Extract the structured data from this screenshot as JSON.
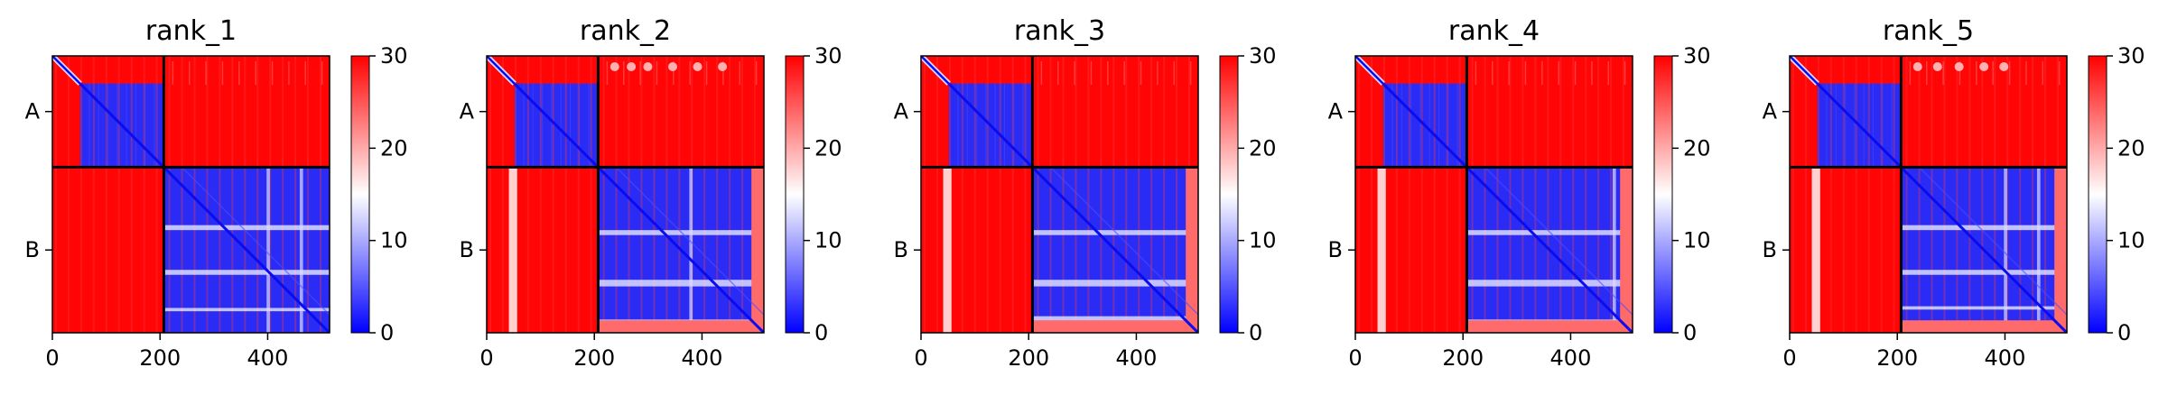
{
  "chart_data": {
    "type": "heatmap",
    "panel_count": 5,
    "x_ticks": [
      0,
      200,
      400
    ],
    "x_tick_labels": [
      "0",
      "200",
      "400"
    ],
    "xlim": [
      0,
      515
    ],
    "chain_boundary": 207,
    "chain_labels": [
      "A",
      "B"
    ],
    "colorbar": {
      "ticks": [
        0,
        10,
        20,
        30
      ],
      "tick_labels": [
        "0",
        "10",
        "20",
        "30"
      ],
      "range": [
        0,
        30
      ],
      "colors": {
        "low": "#0000ff",
        "mid": "#ffffff",
        "high": "#ff0000"
      }
    },
    "panels": [
      {
        "title": "rank_1",
        "diag_tail": "blue",
        "bottom_band": false,
        "right_band": false,
        "left_stripes": [],
        "top_notches": [],
        "hbands": [
          {
            "y0": 0.35,
            "y1": 0.38
          },
          {
            "y0": 0.62,
            "y1": 0.65
          },
          {
            "y0": 0.85,
            "y1": 0.87
          }
        ],
        "vbands": [
          {
            "x0": 0.62,
            "x1": 0.64
          },
          {
            "x0": 0.82,
            "x1": 0.84
          }
        ]
      },
      {
        "title": "rank_2",
        "diag_tail": "blue",
        "bottom_band": true,
        "right_band": true,
        "left_stripes": [
          {
            "x": 0.08,
            "w": 0.03
          }
        ],
        "top_notches": [
          0.1,
          0.2,
          0.3,
          0.45,
          0.6,
          0.75
        ],
        "hbands": [
          {
            "y0": 0.38,
            "y1": 0.41
          },
          {
            "y0": 0.68,
            "y1": 0.72
          },
          {
            "y0": 0.92,
            "y1": 0.96
          }
        ],
        "vbands": [
          {
            "x0": 0.55,
            "x1": 0.57
          },
          {
            "x0": 0.95,
            "x1": 0.97
          }
        ]
      },
      {
        "title": "rank_3",
        "diag_tail": "blue",
        "bottom_band": true,
        "right_band": true,
        "left_stripes": [
          {
            "x": 0.08,
            "w": 0.03
          }
        ],
        "top_notches": [],
        "hbands": [
          {
            "y0": 0.38,
            "y1": 0.41
          },
          {
            "y0": 0.68,
            "y1": 0.72
          },
          {
            "y0": 0.9,
            "y1": 0.95
          }
        ],
        "vbands": [
          {
            "x0": 0.96,
            "x1": 0.99
          }
        ]
      },
      {
        "title": "rank_4",
        "diag_tail": "blue",
        "bottom_band": true,
        "right_band": true,
        "left_stripes": [
          {
            "x": 0.08,
            "w": 0.03
          }
        ],
        "top_notches": [],
        "hbands": [
          {
            "y0": 0.38,
            "y1": 0.41
          },
          {
            "y0": 0.68,
            "y1": 0.72
          },
          {
            "y0": 0.92,
            "y1": 0.96
          }
        ],
        "vbands": [
          {
            "x0": 0.88,
            "x1": 0.9
          }
        ]
      },
      {
        "title": "rank_5",
        "diag_tail": "blue",
        "bottom_band": true,
        "right_band": true,
        "left_stripes": [
          {
            "x": 0.08,
            "w": 0.03
          }
        ],
        "top_notches": [
          0.1,
          0.22,
          0.35,
          0.5,
          0.62
        ],
        "hbands": [
          {
            "y0": 0.35,
            "y1": 0.38
          },
          {
            "y0": 0.62,
            "y1": 0.65
          },
          {
            "y0": 0.84,
            "y1": 0.86
          }
        ],
        "vbands": [
          {
            "x0": 0.62,
            "x1": 0.64
          },
          {
            "x0": 0.82,
            "x1": 0.84
          }
        ]
      }
    ]
  }
}
